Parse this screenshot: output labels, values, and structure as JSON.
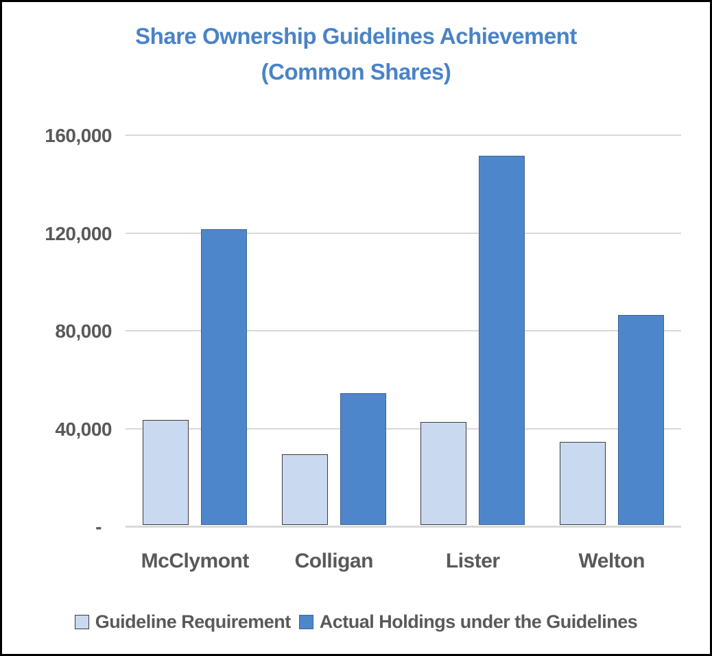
{
  "window": {
    "background": "#ffffff",
    "frame_border_color": "#000000"
  },
  "chart_data": {
    "type": "bar",
    "title_line1": "Share Ownership Guidelines Achievement",
    "title_line2": "(Common Shares)",
    "title_color": "#4a83c6",
    "categories": [
      "McClymont",
      "Colligan",
      "Lister",
      "Welton"
    ],
    "series": [
      {
        "name": "Guideline Requirement",
        "values": [
          43000,
          29000,
          42000,
          34000
        ],
        "fill": "#c9d9f0",
        "border": "#3a3a3a"
      },
      {
        "name": "Actual Holdings under the Guidelines",
        "values": [
          121000,
          54000,
          151000,
          86000
        ],
        "fill": "#4e86cb",
        "border": "#40628f"
      }
    ],
    "ylim": [
      0,
      160000
    ],
    "yticks": [
      {
        "value": 160000,
        "label": "160,000"
      },
      {
        "value": 120000,
        "label": "120,000"
      },
      {
        "value": 80000,
        "label": "80,000"
      },
      {
        "value": 40000,
        "label": "40,000"
      },
      {
        "value": 0,
        "label": "-"
      }
    ],
    "grid": "horizontal",
    "gridline_color": "#d9d9d9",
    "axis_text_color": "#595959",
    "legend_position": "bottom",
    "legend_text_color": "#595959"
  }
}
